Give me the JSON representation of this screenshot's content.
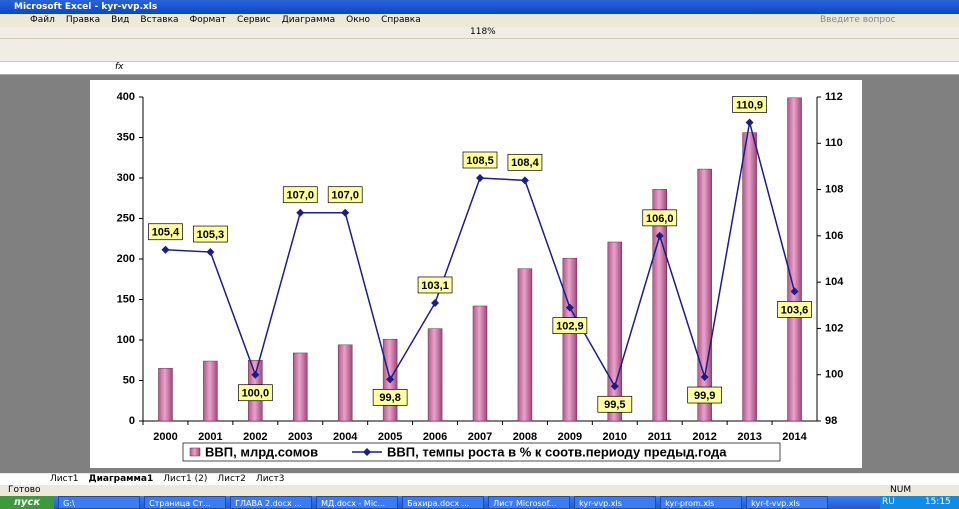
{
  "window": {
    "title": "Microsoft Excel - kyr-vvp.xls",
    "menu": [
      "Файл",
      "Правка",
      "Вид",
      "Вставка",
      "Формат",
      "Сервис",
      "Диаграмма",
      "Окно",
      "Справка"
    ],
    "help_box": "Введите вопрос",
    "zoom": "118%",
    "formula_label": "fx",
    "sheet_tabs": [
      "Лист1",
      "Диаграмма1",
      "Лист1 (2)",
      "Лист2",
      "Лист3"
    ],
    "status": "Готово",
    "status_right": "NUM",
    "start": "пуск",
    "taskbar": [
      "G:\\",
      "Страница Ст...",
      "ГЛАВА 2.docx ...",
      "МД.docx - Mic...",
      "Бахира.docx ...",
      "Лист Microsof...",
      "kyr-vvp.xls",
      "kyr-prom.xls",
      "kyr-t-vvp.xls"
    ],
    "lang": "RU",
    "clock": "15:15"
  },
  "chart_data": {
    "type": "bar_line",
    "categories": [
      "2000",
      "2001",
      "2002",
      "2003",
      "2004",
      "2005",
      "2006",
      "2007",
      "2008",
      "2009",
      "2010",
      "2011",
      "2012",
      "2013",
      "2014"
    ],
    "series": [
      {
        "name": "ВВП, млрд.сомов",
        "color": "#e9a3cb",
        "type": "bar",
        "values": [
          65,
          74,
          75,
          84,
          94,
          101,
          114,
          142,
          188,
          201,
          221,
          286,
          311,
          356,
          399
        ]
      },
      {
        "name": "ВВП, темпы роста в % к соотв.периоду предыд.года",
        "color": "#1c1c8a",
        "type": "line",
        "axis": "y2",
        "values": [
          105.4,
          105.3,
          100.0,
          107.0,
          107.0,
          99.8,
          103.1,
          108.5,
          108.4,
          102.9,
          99.5,
          106.0,
          99.9,
          110.9,
          103.6
        ],
        "value_labels": [
          "105,4",
          "105,3",
          "100,0",
          "107,0",
          "107,0",
          "99,8",
          "103,1",
          "108,5",
          "108,4",
          "102,9",
          "99,5",
          "106,0",
          "99,9",
          "110,9",
          "103,6"
        ]
      }
    ],
    "ylim": [
      0,
      400
    ],
    "yticks": [
      0,
      50,
      100,
      150,
      200,
      250,
      300,
      350,
      400
    ],
    "y2lim": [
      98,
      112
    ],
    "y2ticks": [
      98,
      100,
      102,
      104,
      106,
      108,
      110,
      112
    ],
    "legend": "bottom"
  }
}
